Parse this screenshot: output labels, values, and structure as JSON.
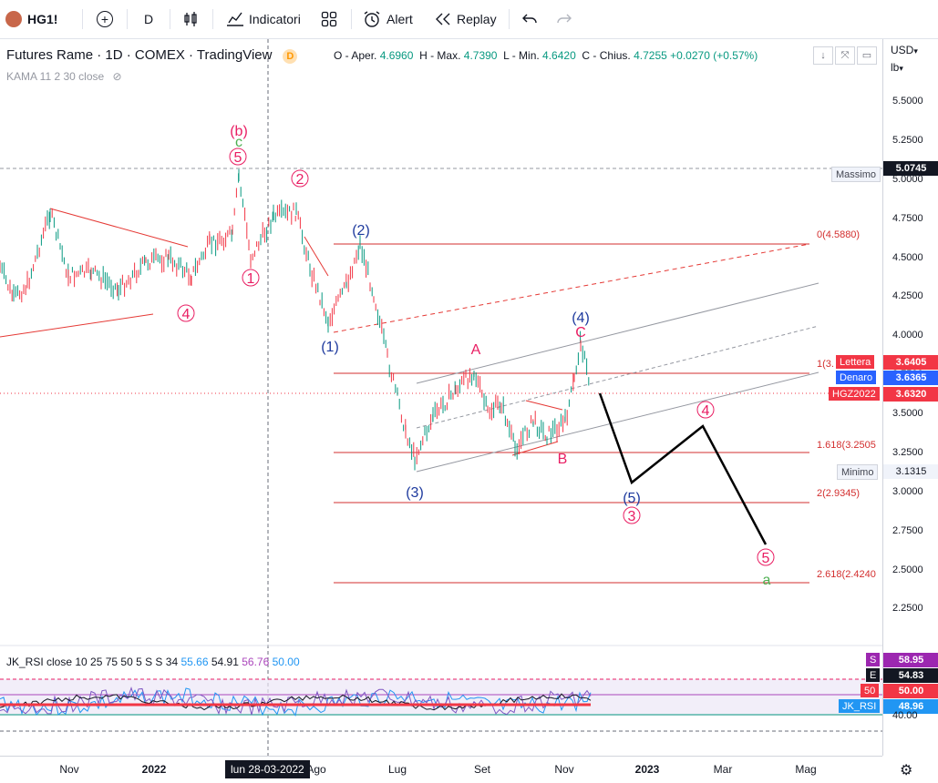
{
  "toolbar": {
    "symbol": "HG1!",
    "interval": "D",
    "indicators_label": "Indicatori",
    "alert_label": "Alert",
    "replay_label": "Replay",
    "currency": "USD",
    "currency_arrow": "▾",
    "unit": "lb",
    "unit_arrow": "▾"
  },
  "legend": {
    "title": "Futures Rame · 1D · COMEX · TradingView",
    "badge": "D",
    "indicator": "KAMA 11 2 30 close"
  },
  "ohlc": {
    "o_label": "O - Aper.",
    "o": "4.6960",
    "h_label": "H - Max.",
    "h": "4.7390",
    "l_label": "L - Min.",
    "l": "4.6420",
    "c_label": "C - Chius.",
    "c": "4.7255",
    "change": "+0.0270 (+0.57%)"
  },
  "price_axis": {
    "ticks": [
      "5.5000",
      "5.2500",
      "5.0000",
      "4.7500",
      "4.5000",
      "4.2500",
      "4.0000",
      "3.7500",
      "3.5000",
      "3.2500",
      "3.0000",
      "2.7500",
      "2.5000",
      "2.2500"
    ],
    "rsi_ticks": [
      "40.00"
    ]
  },
  "price_tags": {
    "massimo_label": "Massimo",
    "massimo": "5.0745",
    "lettera_label": "Lettera",
    "lettera": "3.6405",
    "denaro_label": "Denaro",
    "denaro": "3.6365",
    "symbol_label": "HGZ2022",
    "last": "3.6320",
    "minimo_label": "Minimo",
    "minimo": "3.1315"
  },
  "fib_labels": {
    "f0": "0(4.5880)",
    "f1": "1(3.",
    "f1618": "1.618(3.2505",
    "f2": "2(2.9345)",
    "f2618": "2.618(2.4240"
  },
  "wave_labels": {
    "b_paren": "(b)",
    "c_green_top": "c",
    "w5_circ": "5",
    "w2_circ": "2",
    "w1_circ": "1",
    "w4_circ": "4",
    "p2": "(2)",
    "p1": "(1)",
    "p3": "(3)",
    "p4": "(4)",
    "p5": "(5)",
    "A": "A",
    "B": "B",
    "C": "C",
    "w3_circ": "3",
    "w4b_circ": "4",
    "w5b_circ": "5",
    "a_green": "a"
  },
  "rsi": {
    "title": "JK_RSI close 10 25 75 50 5 S S 34",
    "v1": "55.66",
    "v2": "54.91",
    "v3": "56.76",
    "v4": "50.00",
    "s_label": "S",
    "s": "58.95",
    "e_label": "E",
    "e": "54.83",
    "n50_label": "50",
    "n50": "50.00",
    "jk_label": "JK_RSI",
    "jk": "48.96"
  },
  "time_axis": {
    "labels": [
      "Nov",
      "2022",
      "Ago",
      "Lug",
      "Set",
      "Nov",
      "2023",
      "Mar",
      "Mag"
    ],
    "crosshair": "lun 28-03-2022"
  },
  "colors": {
    "up": "#089981",
    "down": "#f23645",
    "wave_red": "#e91e63",
    "wave_blue": "#1e3a9e",
    "green": "#4caf50"
  }
}
